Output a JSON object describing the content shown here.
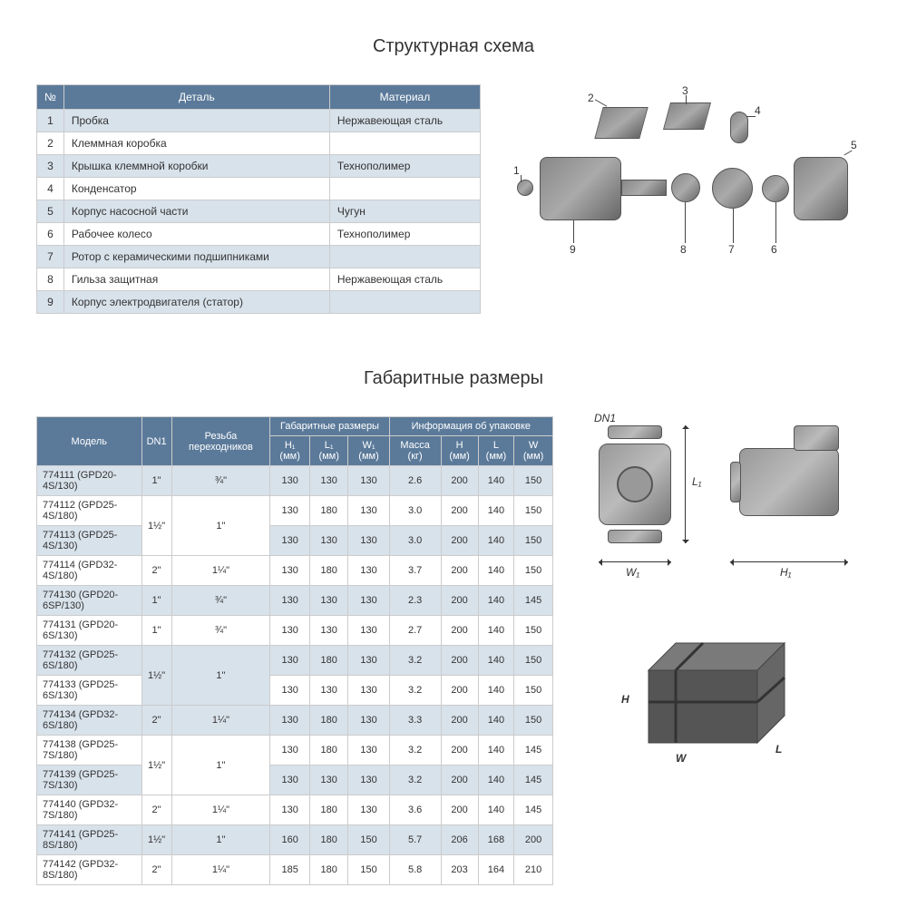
{
  "structural": {
    "title": "Структурная схема",
    "columns": [
      "№",
      "Деталь",
      "Материал"
    ],
    "rows": [
      {
        "n": "1",
        "part": "Пробка",
        "mat": "Нержавеющая сталь"
      },
      {
        "n": "2",
        "part": "Клеммная коробка",
        "mat": ""
      },
      {
        "n": "3",
        "part": "Крышка клеммной коробки",
        "mat": "Технополимер"
      },
      {
        "n": "4",
        "part": "Конденсатор",
        "mat": ""
      },
      {
        "n": "5",
        "part": "Корпус насосной части",
        "mat": "Чугун"
      },
      {
        "n": "6",
        "part": "Рабочее колесо",
        "mat": "Технополимер"
      },
      {
        "n": "7",
        "part": "Ротор с керамическими подшипниками",
        "mat": ""
      },
      {
        "n": "8",
        "part": "Гильза защитная",
        "mat": "Нержавеющая сталь"
      },
      {
        "n": "9",
        "part": "Корпус электродвигателя (статор)",
        "mat": ""
      }
    ],
    "callouts": [
      "1",
      "2",
      "3",
      "4",
      "5",
      "6",
      "7",
      "8",
      "9"
    ]
  },
  "dimensions": {
    "title": "Габаритные размеры",
    "head1": {
      "model": "Модель",
      "dn1": "DN1",
      "thread": "Резьба переходников",
      "dims": "Габаритные размеры",
      "pack": "Информация об упаковке"
    },
    "head2": {
      "h1": "H₁ (мм)",
      "l1": "L₁ (мм)",
      "w1": "W₁ (мм)",
      "mass": "Масса (кг)",
      "h": "H (мм)",
      "l": "L (мм)",
      "w": "W (мм)"
    },
    "rows": [
      {
        "model": "774111 (GPD20-4S/130)",
        "dn": "1\"",
        "thread": "¾\"",
        "h1": "130",
        "l1": "130",
        "w1": "130",
        "mass": "2.6",
        "h": "200",
        "l": "140",
        "w": "150",
        "dnspan": 1,
        "thspan": 1
      },
      {
        "model": "774112 (GPD25-4S/180)",
        "dn": "1½\"",
        "thread": "1\"",
        "h1": "130",
        "l1": "180",
        "w1": "130",
        "mass": "3.0",
        "h": "200",
        "l": "140",
        "w": "150",
        "dnspan": 2,
        "thspan": 2
      },
      {
        "model": "774113 (GPD25-4S/130)",
        "dn": "",
        "thread": "",
        "h1": "130",
        "l1": "130",
        "w1": "130",
        "mass": "3.0",
        "h": "200",
        "l": "140",
        "w": "150",
        "dnspan": 0,
        "thspan": 0
      },
      {
        "model": "774114 (GPD32-4S/180)",
        "dn": "2\"",
        "thread": "1¼\"",
        "h1": "130",
        "l1": "180",
        "w1": "130",
        "mass": "3.7",
        "h": "200",
        "l": "140",
        "w": "150",
        "dnspan": 1,
        "thspan": 1
      },
      {
        "model": "774130 (GPD20-6SP/130)",
        "dn": "1\"",
        "thread": "¾\"",
        "h1": "130",
        "l1": "130",
        "w1": "130",
        "mass": "2.3",
        "h": "200",
        "l": "140",
        "w": "145",
        "dnspan": 1,
        "thspan": 1
      },
      {
        "model": "774131 (GPD20-6S/130)",
        "dn": "1\"",
        "thread": "¾\"",
        "h1": "130",
        "l1": "130",
        "w1": "130",
        "mass": "2.7",
        "h": "200",
        "l": "140",
        "w": "150",
        "dnspan": 1,
        "thspan": 1
      },
      {
        "model": "774132 (GPD25-6S/180)",
        "dn": "1½\"",
        "thread": "1\"",
        "h1": "130",
        "l1": "180",
        "w1": "130",
        "mass": "3.2",
        "h": "200",
        "l": "140",
        "w": "150",
        "dnspan": 2,
        "thspan": 2
      },
      {
        "model": "774133 (GPD25-6S/130)",
        "dn": "",
        "thread": "",
        "h1": "130",
        "l1": "130",
        "w1": "130",
        "mass": "3.2",
        "h": "200",
        "l": "140",
        "w": "150",
        "dnspan": 0,
        "thspan": 0
      },
      {
        "model": "774134 (GPD32-6S/180)",
        "dn": "2\"",
        "thread": "1¼\"",
        "h1": "130",
        "l1": "180",
        "w1": "130",
        "mass": "3.3",
        "h": "200",
        "l": "140",
        "w": "150",
        "dnspan": 1,
        "thspan": 1
      },
      {
        "model": "774138 (GPD25-7S/180)",
        "dn": "1½\"",
        "thread": "1\"",
        "h1": "130",
        "l1": "180",
        "w1": "130",
        "mass": "3.2",
        "h": "200",
        "l": "140",
        "w": "145",
        "dnspan": 2,
        "thspan": 2
      },
      {
        "model": "774139 (GPD25-7S/130)",
        "dn": "",
        "thread": "",
        "h1": "130",
        "l1": "130",
        "w1": "130",
        "mass": "3.2",
        "h": "200",
        "l": "140",
        "w": "145",
        "dnspan": 0,
        "thspan": 0
      },
      {
        "model": "774140 (GPD32-7S/180)",
        "dn": "2\"",
        "thread": "1¼\"",
        "h1": "130",
        "l1": "180",
        "w1": "130",
        "mass": "3.6",
        "h": "200",
        "l": "140",
        "w": "145",
        "dnspan": 1,
        "thspan": 1
      },
      {
        "model": "774141 (GPD25-8S/180)",
        "dn": "1½\"",
        "thread": "1\"",
        "h1": "160",
        "l1": "180",
        "w1": "150",
        "mass": "5.7",
        "h": "206",
        "l": "168",
        "w": "200",
        "dnspan": 1,
        "thspan": 1
      },
      {
        "model": "774142 (GPD32-8S/180)",
        "dn": "2\"",
        "thread": "1¼\"",
        "h1": "185",
        "l1": "180",
        "w1": "150",
        "mass": "5.8",
        "h": "203",
        "l": "164",
        "w": "210",
        "dnspan": 1,
        "thspan": 1
      }
    ],
    "labels": {
      "dn1": "DN1",
      "l1": "L₁",
      "w1": "W₁",
      "h1": "H₁",
      "H": "H",
      "W": "W",
      "L": "L"
    }
  },
  "colors": {
    "header_bg": "#5b7a9a",
    "row_odd": "#d8e2eb",
    "row_even": "#ffffff",
    "border": "#cccccc",
    "text": "#333333"
  }
}
